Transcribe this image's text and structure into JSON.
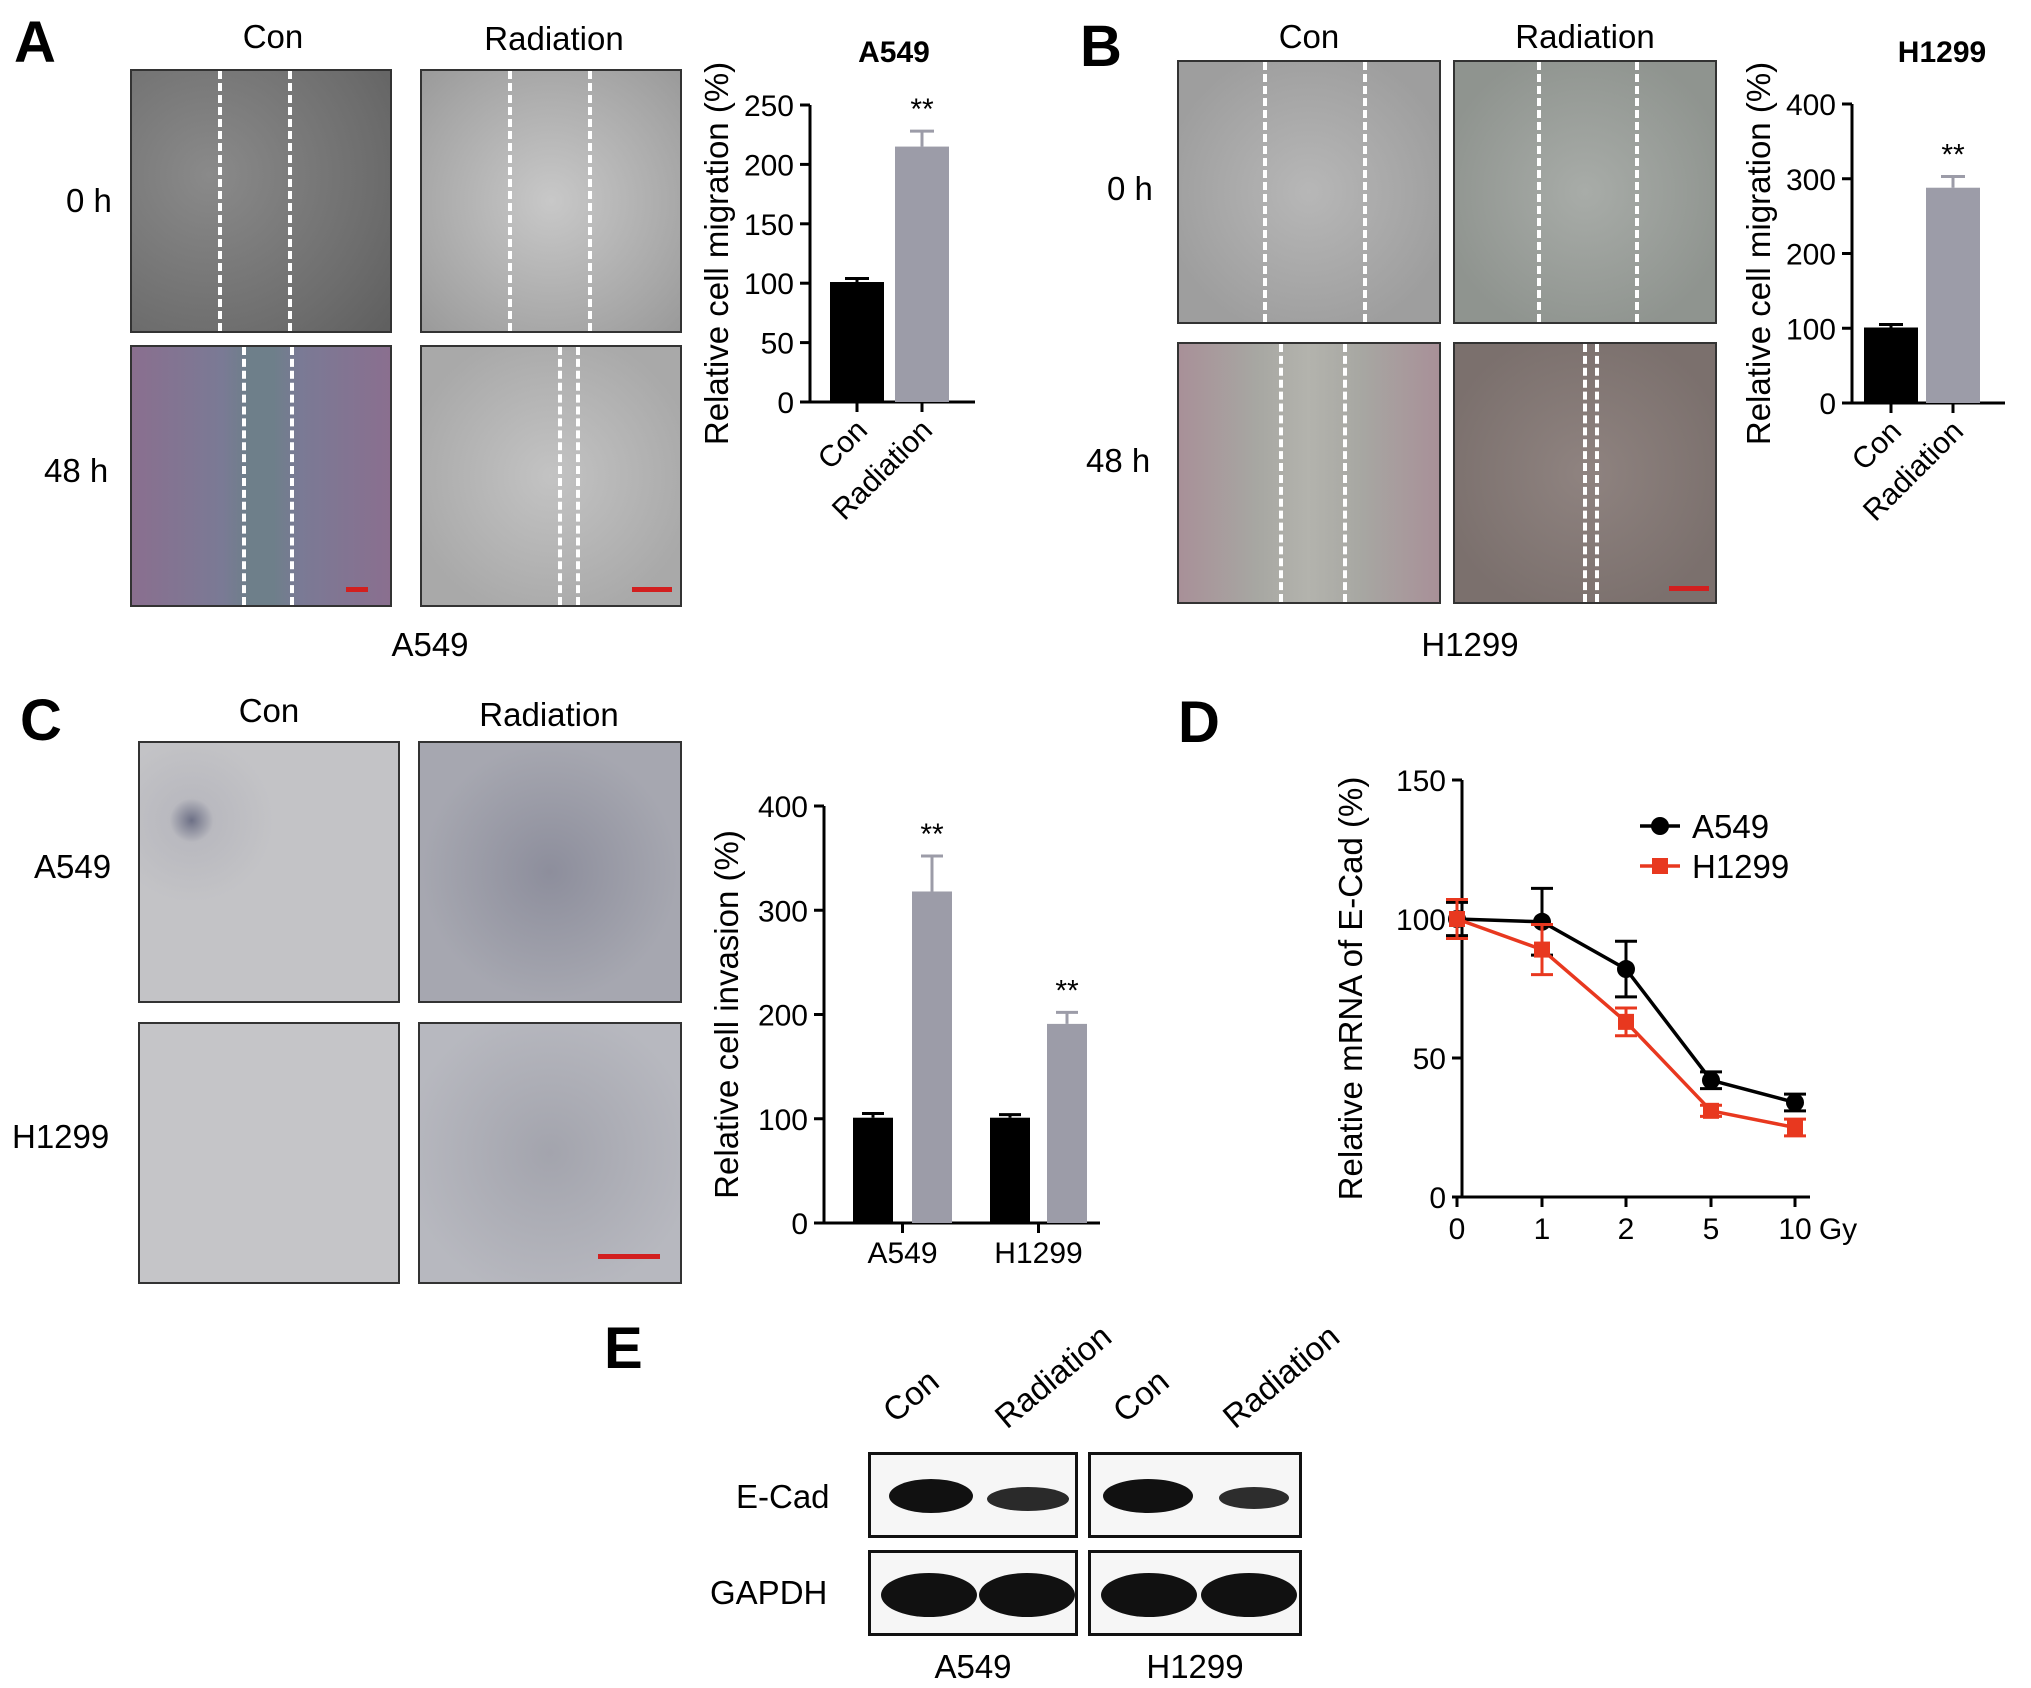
{
  "panels": {
    "A": {
      "letter": "A",
      "col_labels": [
        "Con",
        "Radiation"
      ],
      "row_labels": [
        "0 h",
        "48 h"
      ],
      "cell_label": "A549"
    },
    "B": {
      "letter": "B",
      "col_labels": [
        "Con",
        "Radiation"
      ],
      "row_labels": [
        "0 h",
        "48 h"
      ],
      "cell_label": "H1299"
    },
    "C": {
      "letter": "C",
      "col_labels": [
        "Con",
        "Radiation"
      ],
      "row_labels": [
        "A549",
        "H1299"
      ]
    },
    "D": {
      "letter": "D"
    },
    "E": {
      "letter": "E",
      "lane_labels": [
        "Con",
        "Radiation",
        "Con",
        "Radiation"
      ],
      "row_labels": [
        "E-Cad",
        "GAPDH"
      ],
      "group_labels": [
        "A549",
        "H1299"
      ]
    }
  },
  "colors": {
    "con_bar": "#000000",
    "radiation_bar": "#9c9ca8",
    "a549_line": "#000000",
    "h1299_line": "#e8381f",
    "scalebar": "#d21f1f"
  },
  "chart_data": [
    {
      "id": "A",
      "type": "bar",
      "title": "A549",
      "ylabel": "Relative cell migration (%)",
      "categories": [
        "Con",
        "Radiation"
      ],
      "values": [
        101,
        215
      ],
      "errors": [
        3,
        13
      ],
      "significance": [
        "",
        "**"
      ],
      "yticks": [
        0,
        50,
        100,
        150,
        200,
        250
      ],
      "ylim": [
        0,
        250
      ]
    },
    {
      "id": "B",
      "type": "bar",
      "title": "H1299",
      "ylabel": "Relative cell migration (%)",
      "categories": [
        "Con",
        "Radiation"
      ],
      "values": [
        101,
        288
      ],
      "errors": [
        4,
        15
      ],
      "significance": [
        "",
        "**"
      ],
      "yticks": [
        0,
        100,
        200,
        300,
        400
      ],
      "ylim": [
        0,
        400
      ]
    },
    {
      "id": "C",
      "type": "bar",
      "ylabel": "Relative cell invasion (%)",
      "categories": [
        "A549",
        "H1299"
      ],
      "series": [
        {
          "values": [
            101,
            101
          ],
          "errors": [
            4,
            3
          ]
        },
        {
          "values": [
            318,
            191
          ],
          "errors": [
            34,
            11
          ]
        }
      ],
      "significance": [
        "**",
        "**"
      ],
      "yticks": [
        0,
        100,
        200,
        300,
        400
      ],
      "ylim": [
        0,
        400
      ]
    },
    {
      "id": "D",
      "type": "line",
      "ylabel": "Relative mRNA of E-Cad (%)",
      "xlabel": "Gy",
      "x": [
        "0",
        "1",
        "2",
        "5",
        "10"
      ],
      "series": [
        {
          "name": "A549",
          "values": [
            100,
            99,
            82,
            42,
            34
          ],
          "errors": [
            6,
            12,
            10,
            3,
            3
          ]
        },
        {
          "name": "H1299",
          "values": [
            100,
            89,
            63,
            31,
            25
          ],
          "errors": [
            7,
            9,
            5,
            2,
            3
          ]
        }
      ],
      "yticks": [
        0,
        50,
        100,
        150
      ],
      "ylim": [
        0,
        150
      ],
      "legend": "top-right"
    }
  ]
}
